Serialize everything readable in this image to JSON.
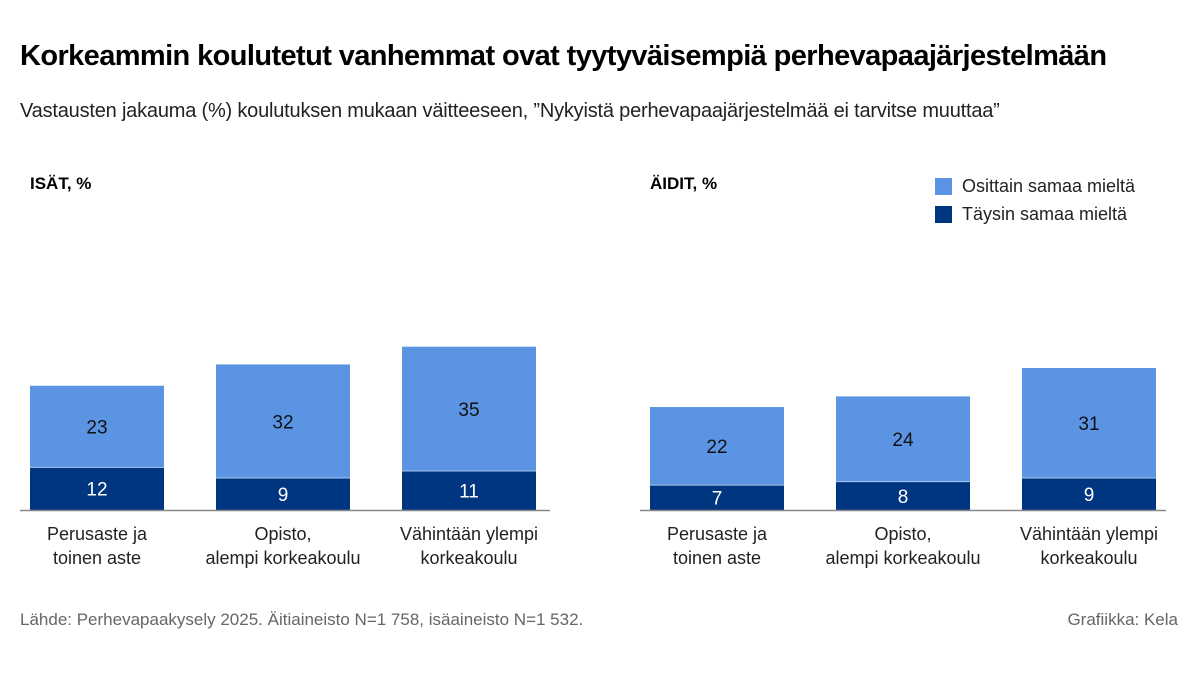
{
  "title": "Korkeammin koulutetut vanhemmat ovat tyytyväisempiä perhevapaajärjestelmään",
  "subtitle": "Vastausten jakauma (%) koulutuksen mukaan väitteeseen, ”Nykyistä perhevapaajärjestelmää ei tarvitse muuttaa”",
  "source": "Lähde: Perhevapaakysely 2025. Äitiaineisto N=1 758, isäaineisto N=1 532.",
  "credit": "Grafiikka: Kela",
  "legend": [
    {
      "label": "Osittain samaa mieltä",
      "color": "#5b94e3"
    },
    {
      "label": "Täysin samaa mieltä",
      "color": "#003580"
    }
  ],
  "chart_data": [
    {
      "type": "bar",
      "stacked": true,
      "title": "ISÄT, %",
      "categories": [
        "Perusaste ja\ntoinen aste",
        "Opisto,\nalempi korkeakoulu",
        "Vähintään ylempi\nkorkeakoulu"
      ],
      "series": [
        {
          "name": "Täysin samaa mieltä",
          "color": "#003580",
          "values": [
            12,
            9,
            11
          ]
        },
        {
          "name": "Osittain samaa mieltä",
          "color": "#5b94e3",
          "values": [
            23,
            32,
            35
          ]
        }
      ],
      "grid": false
    },
    {
      "type": "bar",
      "stacked": true,
      "title": "ÄIDIT, %",
      "categories": [
        "Perusaste ja\ntoinen aste",
        "Opisto,\nalempi korkeakoulu",
        "Vähintään ylempi\nkorkeakoulu"
      ],
      "series": [
        {
          "name": "Täysin samaa mieltä",
          "color": "#003580",
          "values": [
            7,
            8,
            9
          ]
        },
        {
          "name": "Osittain samaa mieltä",
          "color": "#5b94e3",
          "values": [
            22,
            24,
            31
          ]
        }
      ],
      "grid": false,
      "legend_position": "top-right"
    }
  ]
}
